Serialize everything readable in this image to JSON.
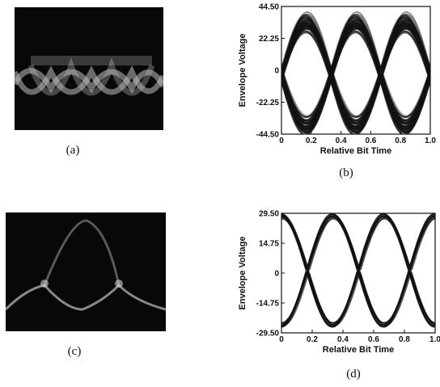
{
  "captions": {
    "a": "(a)",
    "b": "(b)",
    "c": "(c)",
    "d": "(d)"
  },
  "colors": {
    "scope_bg": "#080808",
    "scope_trace": "#bdbdbd",
    "plot_ink": "#111111"
  },
  "chart_data": [
    {
      "id": "b",
      "type": "line",
      "title": "",
      "xlabel": "Relative Bit Time",
      "ylabel": "Envelope Voltage",
      "xlim": [
        0,
        1.0
      ],
      "ylim": [
        -44.5,
        44.5
      ],
      "x_ticks": [
        "0",
        "0.2",
        "0.4",
        "0.6",
        "0.8",
        "1.0"
      ],
      "y_ticks": [
        "44.50",
        "22.25",
        "0",
        "-22.25",
        "-44.50"
      ],
      "grid": false,
      "eye_pattern": {
        "bit_period": 0.333,
        "phase": 0.0,
        "peak": 34,
        "trough": -40,
        "spread": 11,
        "traces": 60
      }
    },
    {
      "id": "d",
      "type": "line",
      "title": "",
      "xlabel": "Relative Bit Time",
      "ylabel": "Envelope Voltage",
      "xlim": [
        0,
        1.0
      ],
      "ylim": [
        -29.5,
        29.5
      ],
      "x_ticks": [
        "0",
        "0.2",
        "0.4",
        "0.6",
        "0.8",
        "1.0"
      ],
      "y_ticks": [
        "29.50",
        "14.75",
        "0",
        "-14.75",
        "-29.50"
      ],
      "grid": false,
      "eye_pattern": {
        "bit_period": 0.333,
        "phase": 0.17,
        "peak": 28.5,
        "trough": -26,
        "spread": 2.5,
        "traces": 14
      }
    }
  ]
}
